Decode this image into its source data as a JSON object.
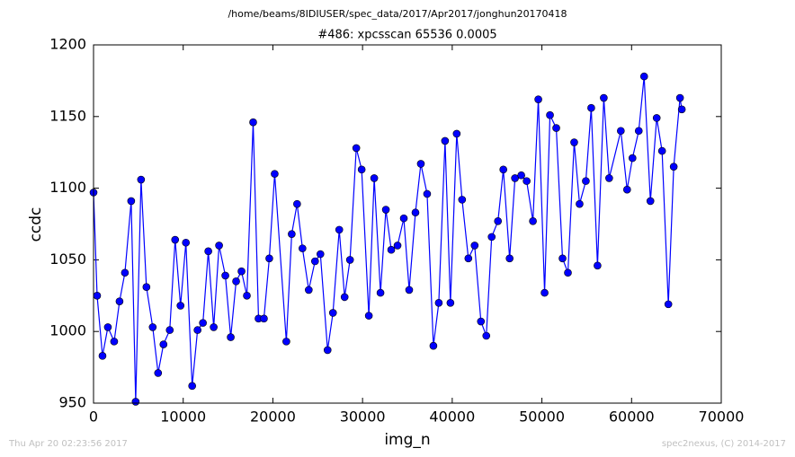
{
  "chart_data": {
    "type": "line",
    "suptitle": "/home/beams/8IDIUSER/spec_data/2017/Apr2017/jonghun20170418",
    "title": "#486: xpcsscan 65536 0.0005",
    "xlabel": "img_n",
    "ylabel": "ccdc",
    "footer_left": "Thu Apr 20 02:23:56 2017",
    "footer_right": "spec2nexus, (C) 2014-2017",
    "xlim": [
      0,
      70000
    ],
    "xticks": [
      0,
      10000,
      20000,
      30000,
      40000,
      50000,
      60000,
      70000
    ],
    "ylim": [
      950,
      1200
    ],
    "yticks": [
      950,
      1000,
      1050,
      1100,
      1150,
      1200
    ],
    "grid": false,
    "x": [
      0,
      400,
      1000,
      1600,
      2300,
      2900,
      3500,
      4200,
      4700,
      5300,
      5900,
      6600,
      7200,
      7800,
      8500,
      9100,
      9700,
      10300,
      11000,
      11600,
      12200,
      12800,
      13400,
      14000,
      14700,
      15300,
      15900,
      16500,
      17100,
      17800,
      18400,
      19000,
      19600,
      20200,
      21500,
      22100,
      22700,
      23300,
      24000,
      24700,
      25300,
      26100,
      26700,
      27400,
      28000,
      28600,
      29300,
      29900,
      30700,
      31300,
      32000,
      32600,
      33200,
      33900,
      34600,
      35200,
      35900,
      36500,
      37200,
      37900,
      38500,
      39200,
      39800,
      40500,
      41100,
      41800,
      42500,
      43200,
      43800,
      44400,
      45100,
      45700,
      46400,
      47000,
      47700,
      48300,
      49000,
      49600,
      50300,
      50900,
      51600,
      52300,
      52900,
      53600,
      54200,
      54900,
      55500,
      56200,
      56900,
      57500,
      58800,
      59500,
      60100,
      60800,
      61400,
      62100,
      62800,
      63400,
      64100,
      64700,
      65400,
      65600
    ],
    "series": [
      {
        "color": "#0000ff",
        "values": [
          1097,
          1025,
          983,
          1003,
          993,
          1021,
          1041,
          1091,
          951,
          1106,
          1031,
          1003,
          971,
          991,
          1001,
          1064,
          1018,
          1062,
          962,
          1001,
          1006,
          1056,
          1003,
          1060,
          1039,
          996,
          1035,
          1042,
          1025,
          1146,
          1009,
          1009,
          1051,
          1110,
          993,
          1068,
          1089,
          1058,
          1029,
          1049,
          1054,
          987,
          1013,
          1071,
          1024,
          1050,
          1128,
          1113,
          1011,
          1107,
          1027,
          1085,
          1057,
          1060,
          1079,
          1029,
          1083,
          1117,
          1096,
          990,
          1020,
          1133,
          1020,
          1138,
          1092,
          1051,
          1060,
          1007,
          997,
          1066,
          1077,
          1113,
          1051,
          1107,
          1109,
          1105,
          1077,
          1162,
          1027,
          1151,
          1142,
          1051,
          1041,
          1132,
          1089,
          1105,
          1156,
          1046,
          1163,
          1107,
          1140,
          1099,
          1121,
          1140,
          1178,
          1091,
          1149,
          1126,
          1019,
          1115,
          1163,
          1155
        ]
      }
    ]
  }
}
